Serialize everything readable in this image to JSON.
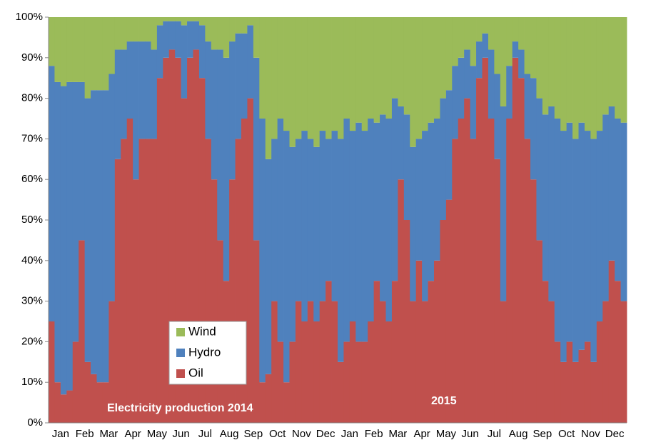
{
  "chart_data": {
    "type": "stacked_bar",
    "annotations": [
      "Electricity production 2014",
      "2015"
    ],
    "categories": [
      "Jan",
      null,
      null,
      null,
      "Feb",
      null,
      null,
      null,
      "Mar",
      null,
      null,
      null,
      "Apr",
      null,
      null,
      null,
      "May",
      null,
      null,
      null,
      "Jun",
      null,
      null,
      null,
      "Jul",
      null,
      null,
      null,
      "Aug",
      null,
      null,
      null,
      "Sep",
      null,
      null,
      null,
      "Oct",
      null,
      null,
      null,
      "Nov",
      null,
      null,
      null,
      "Dec",
      null,
      null,
      null,
      "Jan",
      null,
      null,
      null,
      "Feb",
      null,
      null,
      null,
      "Mar",
      null,
      null,
      null,
      "Apr",
      null,
      null,
      null,
      "May",
      null,
      null,
      null,
      "Jun",
      null,
      null,
      null,
      "Jul",
      null,
      null,
      null,
      "Aug",
      null,
      null,
      null,
      "Sep",
      null,
      null,
      null,
      "Oct",
      null,
      null,
      null,
      "Nov",
      null,
      null,
      null,
      "Dec",
      null,
      null,
      null
    ],
    "series": [
      {
        "name": "Oil",
        "color": "#c0504d",
        "values": [
          25,
          10,
          7,
          8,
          20,
          45,
          15,
          12,
          10,
          10,
          30,
          65,
          70,
          75,
          60,
          70,
          70,
          70,
          85,
          90,
          92,
          90,
          80,
          90,
          92,
          85,
          70,
          60,
          45,
          35,
          60,
          70,
          75,
          80,
          45,
          10,
          12,
          30,
          20,
          10,
          20,
          30,
          25,
          30,
          25,
          30,
          35,
          30,
          15,
          20,
          25,
          20,
          20,
          25,
          35,
          30,
          25,
          35,
          60,
          50,
          30,
          40,
          30,
          35,
          40,
          50,
          55,
          70,
          75,
          80,
          70,
          85,
          90,
          75,
          65,
          30,
          75,
          90,
          85,
          70,
          60,
          45,
          35,
          30,
          20,
          15,
          20,
          15,
          18,
          20,
          15,
          25,
          30,
          40,
          35,
          30
        ]
      },
      {
        "name": "Hydro",
        "color": "#4f81bd",
        "values": [
          63,
          74,
          76,
          76,
          64,
          39,
          65,
          70,
          72,
          72,
          56,
          27,
          22,
          19,
          34,
          24,
          24,
          22,
          13,
          9,
          7,
          9,
          18,
          9,
          7,
          13,
          24,
          32,
          47,
          55,
          34,
          26,
          21,
          18,
          45,
          65,
          53,
          40,
          55,
          62,
          48,
          40,
          47,
          40,
          43,
          42,
          35,
          42,
          55,
          55,
          47,
          54,
          52,
          50,
          39,
          46,
          50,
          45,
          18,
          26,
          38,
          30,
          42,
          39,
          35,
          30,
          27,
          18,
          15,
          12,
          18,
          9,
          6,
          17,
          21,
          48,
          13,
          4,
          7,
          16,
          25,
          35,
          41,
          48,
          55,
          57,
          54,
          55,
          56,
          52,
          55,
          47,
          46,
          38,
          40,
          44
        ]
      },
      {
        "name": "Wind",
        "color": "#9bbb59",
        "values": [
          12,
          16,
          17,
          16,
          16,
          16,
          20,
          18,
          18,
          18,
          14,
          8,
          8,
          6,
          6,
          6,
          6,
          8,
          2,
          1,
          1,
          1,
          2,
          1,
          1,
          2,
          6,
          8,
          8,
          10,
          6,
          4,
          4,
          2,
          10,
          25,
          35,
          30,
          25,
          28,
          32,
          30,
          28,
          30,
          32,
          28,
          30,
          28,
          30,
          25,
          28,
          26,
          28,
          25,
          26,
          24,
          25,
          20,
          22,
          24,
          32,
          30,
          28,
          26,
          25,
          20,
          18,
          12,
          10,
          8,
          12,
          6,
          4,
          8,
          14,
          22,
          12,
          6,
          8,
          14,
          15,
          20,
          24,
          22,
          25,
          28,
          26,
          30,
          26,
          28,
          30,
          28,
          24,
          22,
          25,
          26
        ]
      }
    ],
    "ylim": [
      0,
      100
    ],
    "yticks": [
      {
        "value": 0,
        "label": "0%"
      },
      {
        "value": 10,
        "label": "10%"
      },
      {
        "value": 20,
        "label": "20%"
      },
      {
        "value": 30,
        "label": "30%"
      },
      {
        "value": 40,
        "label": "40%"
      },
      {
        "value": 50,
        "label": "50%"
      },
      {
        "value": 60,
        "label": "60%"
      },
      {
        "value": 70,
        "label": "70%"
      },
      {
        "value": 80,
        "label": "80%"
      },
      {
        "value": 90,
        "label": "90%"
      },
      {
        "value": 100,
        "label": "100%"
      }
    ],
    "legend": "lower-left"
  }
}
